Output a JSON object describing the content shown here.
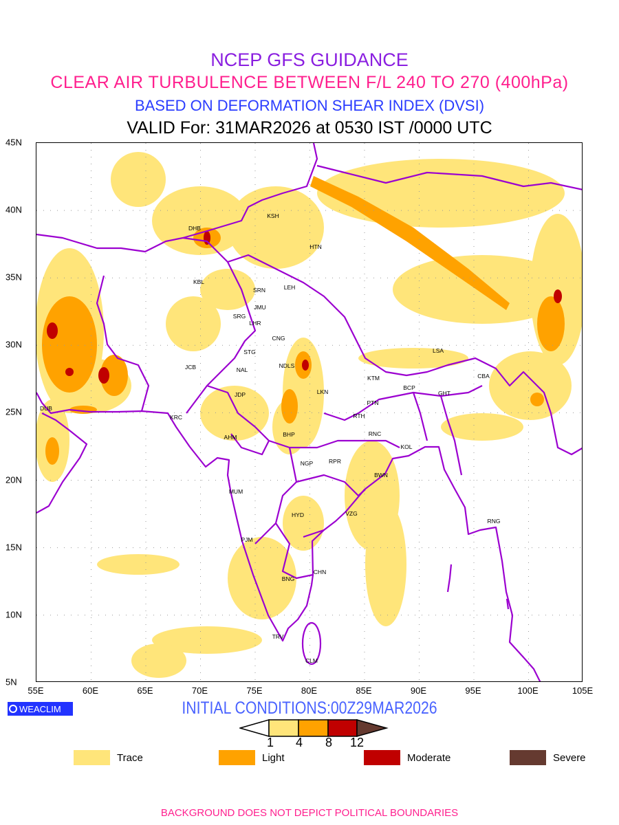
{
  "header": {
    "title": "NCEP GFS GUIDANCE",
    "subtitle": "CLEAR AIR TURBULENCE BETWEEN F/L 240 TO 270 (400hPa)",
    "basis": "BASED ON DEFORMATION SHEAR INDEX (DVSI)",
    "valid": "VALID For: 31MAR2026 at 0530 IST /0000 UTC"
  },
  "axes": {
    "lat_labels": [
      "45N",
      "40N",
      "35N",
      "30N",
      "25N",
      "20N",
      "15N",
      "10N",
      "5N"
    ],
    "lon_labels": [
      "55E",
      "60E",
      "65E",
      "70E",
      "75E",
      "80E",
      "85E",
      "90E",
      "95E",
      "100E",
      "105E"
    ]
  },
  "cities": [
    "KSH",
    "DHB",
    "HTN",
    "KBL",
    "SRN",
    "LEH",
    "JMU",
    "SRG",
    "LHR",
    "CNG",
    "STG",
    "JCB",
    "NAL",
    "NDLS",
    "LSA",
    "CBA",
    "KTM",
    "BCP",
    "GHT",
    "JDP",
    "LKN",
    "DUB",
    "PTN",
    "KRC",
    "RTH",
    "RNC",
    "BHP",
    "AHM",
    "KOL",
    "NGP",
    "RPR",
    "BWN",
    "MUM",
    "HYD",
    "VZG",
    "RNG",
    "PJM",
    "CHN",
    "BNG",
    "TRV",
    "CLM"
  ],
  "logo": "WEACLIM",
  "initial_conditions": "INITIAL CONDITIONS:00Z29MAR2026",
  "colorbar": {
    "ticks": [
      "1",
      "4",
      "8",
      "12"
    ],
    "colors": [
      "#ffe57a",
      "#ffa200",
      "#c00000",
      "#653a30"
    ]
  },
  "legend": [
    {
      "label": "Trace",
      "color": "#ffe57a"
    },
    {
      "label": "Light",
      "color": "#ffa200"
    },
    {
      "label": "Moderate",
      "color": "#c00000"
    },
    {
      "label": "Severe",
      "color": "#653a30"
    }
  ],
  "colors": {
    "boundary": "#9b00d0",
    "trace": "#ffe57a",
    "light": "#ffa200",
    "moderate": "#c00000",
    "severe": "#653a30"
  },
  "footer": "BACKGROUND DOES NOT DEPICT POLITICAL BOUNDARIES"
}
